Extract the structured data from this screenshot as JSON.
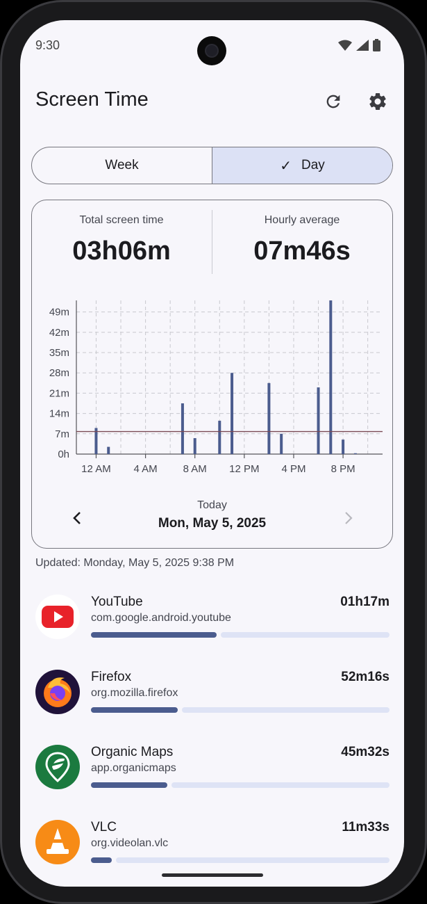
{
  "status": {
    "time": "9:30"
  },
  "header": {
    "title": "Screen Time"
  },
  "range_toggle": {
    "week": "Week",
    "day": "Day",
    "selected": "Day"
  },
  "summary": {
    "total_label": "Total screen time",
    "total_value": "03h06m",
    "avg_label": "Hourly average",
    "avg_value": "07m46s"
  },
  "chart_data": {
    "type": "bar",
    "x_unit": "hour of day",
    "xlabel": "",
    "ylabel": "",
    "x_tick_labels": [
      "12 AM",
      "4 AM",
      "8 AM",
      "12 PM",
      "4 PM",
      "8 PM"
    ],
    "x_tick_hours": [
      0,
      4,
      8,
      12,
      16,
      20
    ],
    "y_tick_labels": [
      "0h",
      "7m",
      "14m",
      "21m",
      "28m",
      "35m",
      "42m",
      "49m"
    ],
    "y_tick_values": [
      0,
      7,
      14,
      21,
      28,
      35,
      42,
      49
    ],
    "ylim": [
      0,
      53
    ],
    "xlim": [
      -1.6,
      23.2
    ],
    "average_line": 7.77,
    "series": [
      {
        "hours": [
          0,
          1,
          7,
          8,
          10,
          11,
          14,
          15,
          18,
          19,
          20,
          21
        ],
        "values": [
          9,
          2.5,
          17.5,
          5.5,
          11.5,
          28,
          24.5,
          7,
          23,
          53,
          5,
          0.3
        ]
      }
    ],
    "grid": true
  },
  "date_nav": {
    "label": "Today",
    "date": "Mon, May 5, 2025"
  },
  "updated": "Updated: Monday, May 5, 2025 9:38 PM",
  "apps": [
    {
      "name": "YouTube",
      "package": "com.google.android.youtube",
      "time": "01h17m",
      "fraction": 0.42,
      "icon": "youtube-icon"
    },
    {
      "name": "Firefox",
      "package": "org.mozilla.firefox",
      "time": "52m16s",
      "fraction": 0.29,
      "icon": "firefox-icon"
    },
    {
      "name": "Organic Maps",
      "package": "app.organicmaps",
      "time": "45m32s",
      "fraction": 0.255,
      "icon": "organic-maps-icon"
    },
    {
      "name": "VLC",
      "package": "org.videolan.vlc",
      "time": "11m33s",
      "fraction": 0.07,
      "icon": "vlc-icon"
    }
  ],
  "colors": {
    "accent": "#4b5c8e",
    "track": "#dee3f5",
    "selected_segment": "#dce1f5",
    "average_line": "#7a4a55"
  }
}
